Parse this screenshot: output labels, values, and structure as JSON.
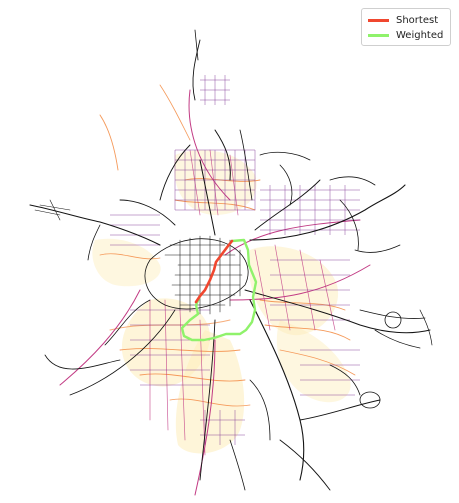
{
  "legend": {
    "items": [
      {
        "label": "Shortest",
        "color": "#f0472f"
      },
      {
        "label": "Weighted",
        "color": "#8ff26b"
      }
    ]
  },
  "palette": {
    "background": "#ffffff",
    "road_dark": "#141414",
    "road_purple": "#7a2a8f",
    "road_magenta": "#c23b84",
    "road_orange": "#f59a5b",
    "road_yellow": "#fde7a3",
    "route_shortest": "#f0472f",
    "route_weighted": "#8ff26b"
  }
}
